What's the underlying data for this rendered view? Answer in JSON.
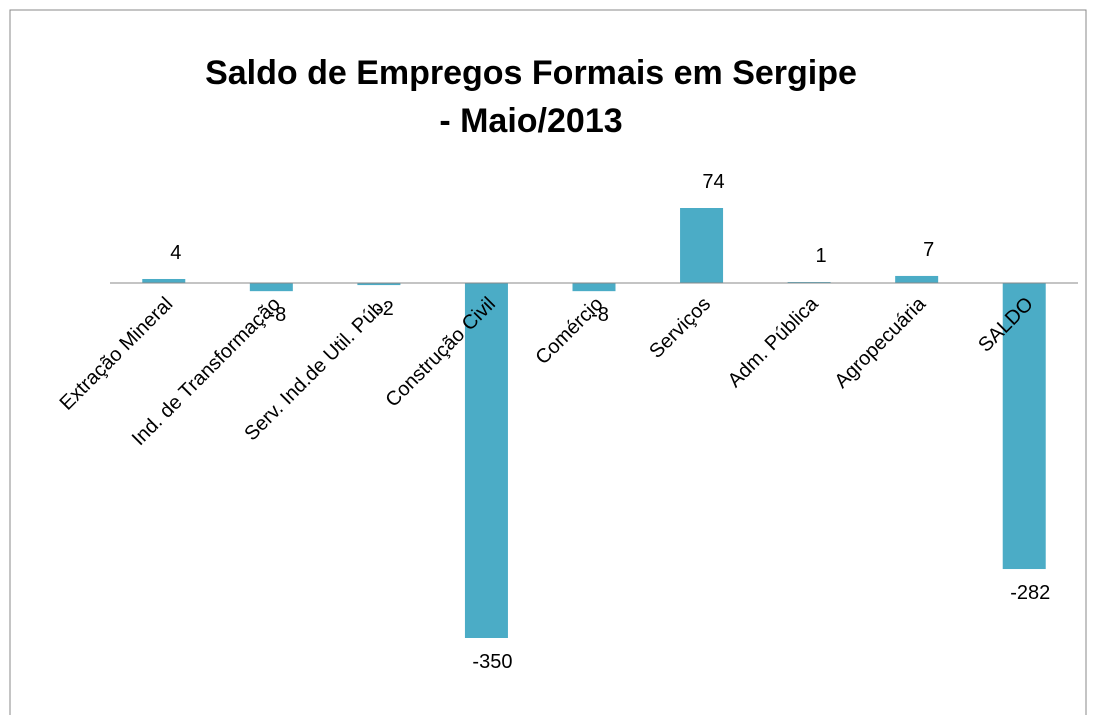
{
  "chart_data": {
    "type": "bar",
    "title": [
      "Saldo de Empregos Formais em Sergipe",
      "- Maio/2013"
    ],
    "categories": [
      "Extração Mineral",
      "Ind. de Transformação",
      "Serv. Ind.de Util. Púb.",
      "Construção Civil",
      "Comércio",
      "Serviços",
      "Adm. Pública",
      "Agropecuária",
      "SALDO"
    ],
    "values": [
      4,
      -8,
      -2,
      -350,
      -8,
      74,
      1,
      7,
      -282
    ],
    "color": "#4bacc6"
  }
}
